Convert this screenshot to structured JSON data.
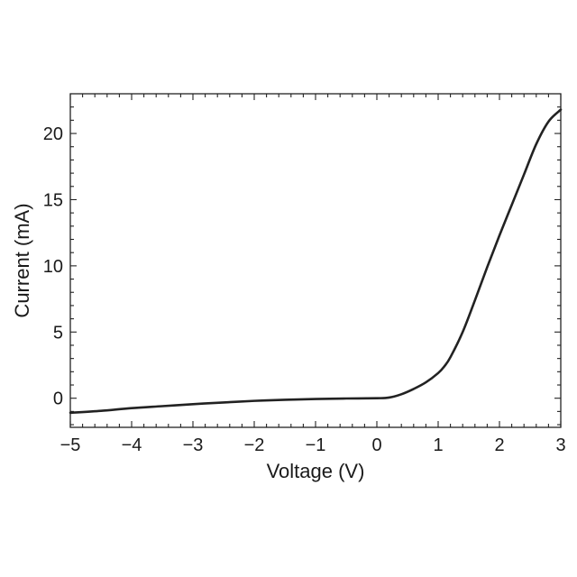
{
  "chart_data": {
    "type": "line",
    "title": "",
    "xlabel": "Voltage (V)",
    "ylabel": "Current (mA)",
    "xlim": [
      -5,
      3
    ],
    "ylim": [
      -2.2,
      23
    ],
    "grid": false,
    "legend": "none",
    "x_ticks": [
      -5,
      -4,
      -3,
      -2,
      -1,
      0,
      1,
      2,
      3
    ],
    "x_tick_labels": [
      "−5",
      "−4",
      "−3",
      "−2",
      "−1",
      "0",
      "1",
      "2",
      "3"
    ],
    "y_ticks": [
      0,
      5,
      10,
      15,
      20
    ],
    "y_tick_labels": [
      "0",
      "5",
      "10",
      "15",
      "20"
    ],
    "series": [
      {
        "color": "#222222",
        "x": [
          -5,
          -4.5,
          -4,
          -3.5,
          -3,
          -2.5,
          -2,
          -1.5,
          -1,
          -0.5,
          0,
          0.2,
          0.4,
          0.6,
          0.8,
          1.0,
          1.1,
          1.2,
          1.4,
          1.6,
          1.8,
          2.0,
          2.2,
          2.4,
          2.6,
          2.8,
          3.0
        ],
        "y": [
          -1.1,
          -0.95,
          -0.75,
          -0.6,
          -0.45,
          -0.32,
          -0.2,
          -0.12,
          -0.06,
          -0.02,
          0.0,
          0.05,
          0.3,
          0.7,
          1.2,
          1.9,
          2.4,
          3.1,
          5.0,
          7.4,
          9.9,
          12.3,
          14.6,
          16.9,
          19.2,
          20.9,
          21.8
        ]
      }
    ]
  }
}
